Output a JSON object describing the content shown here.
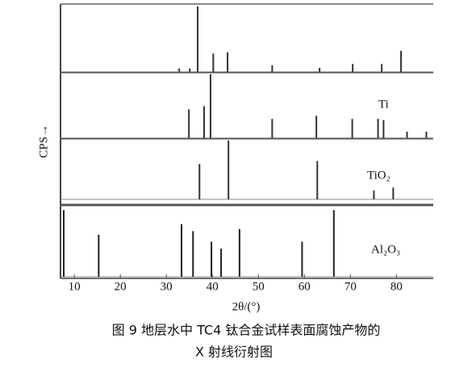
{
  "chart_data": {
    "type": "stem",
    "ylabel": "CPS→",
    "xlabel": "2θ/(°)",
    "caption": [
      "图 9  地层水中 TC4 钛合金试样表面腐蚀产物的",
      "X 射线衍射图"
    ],
    "xlim": [
      7,
      88
    ],
    "xticks": [
      10,
      20,
      30,
      40,
      50,
      60,
      70,
      80
    ],
    "series": [
      {
        "color": "#333333",
        "x": [
          32.8,
          35.1,
          36.8,
          40.2,
          43.3,
          53.0,
          63.3,
          70.5,
          76.8,
          81.0
        ],
        "values": [
          5,
          5,
          100,
          28,
          30,
          10,
          6,
          12,
          12,
          32
        ]
      },
      {
        "name": "Ti",
        "color": "#333333",
        "x": [
          34.9,
          38.2,
          39.6,
          53.0,
          62.6,
          70.4,
          76.0,
          77.2,
          82.3,
          86.5
        ],
        "values": [
          45,
          50,
          100,
          30,
          35,
          30,
          30,
          28,
          10,
          10
        ]
      },
      {
        "name": "TiO₂",
        "color": "#333333",
        "x": [
          37.2,
          43.5,
          62.8,
          75.1,
          79.3
        ],
        "values": [
          60,
          100,
          65,
          15,
          20
        ]
      },
      {
        "name": "Al₂O₃",
        "color": "#222222",
        "x": [
          7.7,
          15.3,
          33.3,
          35.8,
          39.8,
          41.9,
          45.9,
          59.5,
          66.4
        ],
        "values": [
          95,
          60,
          75,
          65,
          50,
          40,
          68,
          50,
          95
        ]
      }
    ]
  }
}
